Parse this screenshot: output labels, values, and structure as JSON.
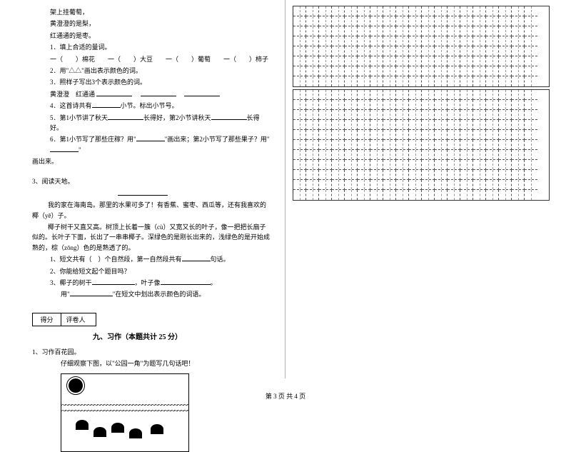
{
  "left": {
    "poem1": "架上挂葡萄，",
    "poem2": "黄澄澄的是梨，",
    "poem3": "红通通的是枣。",
    "q1": "1．填上合适的量词。",
    "q1line": "一（　　）棉花　　一（　　）大豆　　一（　　）葡萄　　一（　　）柿子",
    "q2": "2．用\"△△\"画出表示颜色的词。",
    "q3": "3．照样子写出3个表示颜色的词。",
    "q3line_a": "黄澄澄　红通通",
    "q4a": "4．这首诗共有",
    "q4b": "小节。标出小节号。",
    "q5a": "5．第1小节讲了秋天",
    "q5b": "长得好，第2小节讲秋天",
    "q5c": "长得好。",
    "q6a": "6．第1小节写了那些庄稼？用\"",
    "q6b": "\"画出来；第2小节写了那些果子？用\"",
    "q6c": "\"",
    "q6d": "画出来。",
    "read_head": "3、阅读天地。",
    "p1": "我的家在海南岛。那里的水果可多了！有香蕉、蜜枣、西瓜等，还有我喜欢的椰（yē）子。",
    "p2": "椰子树干又直又高。树顶上长着一簇（cù）又宽又长的叶子，像一把把长扇子似的。长叶子下面，长出了一串串椰子。深绿色的是刚长出来的，浅绿色的是开始成熟的，棕（zōng）色的是熟透了的。",
    "rq1a": "1、短文共有（　）个自然段，第一自然段共有",
    "rq1b": "句话。",
    "rq2": "2、你能给短文起个题目吗？",
    "rq3a": "3、椰子的树干",
    "rq3b": "，叶子像",
    "rq3c": "。",
    "rq4a": "用\"",
    "rq4b": "\"在短文中划出表示颜色的词语。",
    "score_a": "得分",
    "score_b": "评卷人",
    "section": "九、习作（本题共计 25 分）",
    "w1": "1、习作百花园。",
    "w2": "仔细观察下图，以\"公园一角\"为题写几句话吧！"
  },
  "footer": "第 3 页 共 4 页",
  "grid": {
    "rows1": 8,
    "rows2": 11,
    "cols": 19
  }
}
